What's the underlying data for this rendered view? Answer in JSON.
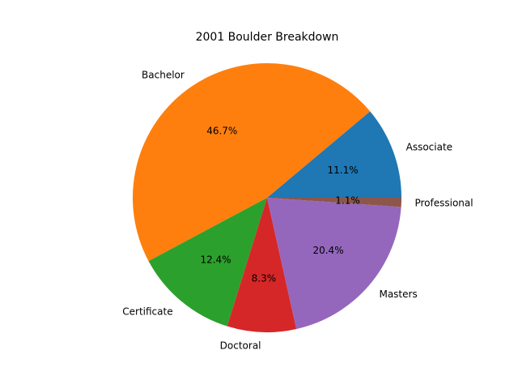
{
  "chart_data": {
    "type": "pie",
    "title": "2001 Boulder Breakdown",
    "labels": [
      "Associate",
      "Bachelor",
      "Certificate",
      "Doctoral",
      "Masters",
      "Professional"
    ],
    "values": [
      11.1,
      46.7,
      12.4,
      8.3,
      20.4,
      1.1
    ],
    "percent_labels": [
      "11.1%",
      "46.7%",
      "12.4%",
      "8.3%",
      "20.4%",
      "1.1%"
    ],
    "colors": [
      "#1f77b4",
      "#ff7f0e",
      "#2ca02c",
      "#d62728",
      "#9467bd",
      "#8c564b"
    ],
    "start_angle_deg": 0,
    "direction": "counterclockwise"
  }
}
